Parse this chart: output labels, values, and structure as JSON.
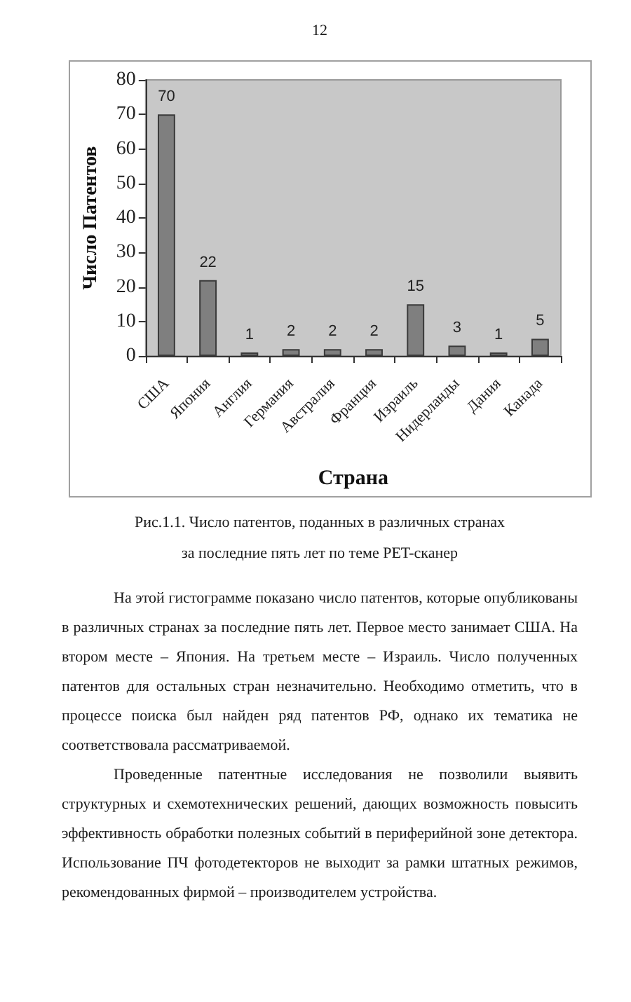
{
  "chart_data": {
    "type": "bar",
    "title": "Рис.1.1. Число патентов, поданных в различных странах за последние пять лет по теме PET-сканер",
    "xlabel": "Страна",
    "ylabel": "Число Патентов",
    "categories": [
      "США",
      "Япония",
      "Англия",
      "Германия",
      "Австралия",
      "Франция",
      "Израиль",
      "Нидерланды",
      "Дания",
      "Канада"
    ],
    "values": [
      70,
      22,
      1,
      2,
      2,
      2,
      15,
      3,
      1,
      5
    ],
    "color": "#7f7f7f",
    "data_labels": true,
    "ylim": [
      0,
      80
    ],
    "yticks": [
      0,
      10,
      20,
      30,
      40,
      50,
      60,
      70,
      80
    ],
    "annotations": [
      "12",
      "На этой гистограмме показано число патентов, которые опубликованы в различных странах за последние пять лет. Первое место занимает США. На втором месте – Япония. На третьем месте – Израиль. Число полученных патентов для остальных стран незначительно. Необходимо отметить, что в процессе поиска был найден ряд патентов РФ, однако их тематика не соответствовала рассматриваемой.",
      "Проведенные патентные исследования не позволили выявить структурных и схемотехнических решений, дающих возможность повысить эффективность обработки полезных событий в периферийной зоне детектора. Использование ПЧ фотодетекторов не выходит за рамки штатных режимов, рекомендованных фирмой – производителем устройства."
    ]
  }
}
